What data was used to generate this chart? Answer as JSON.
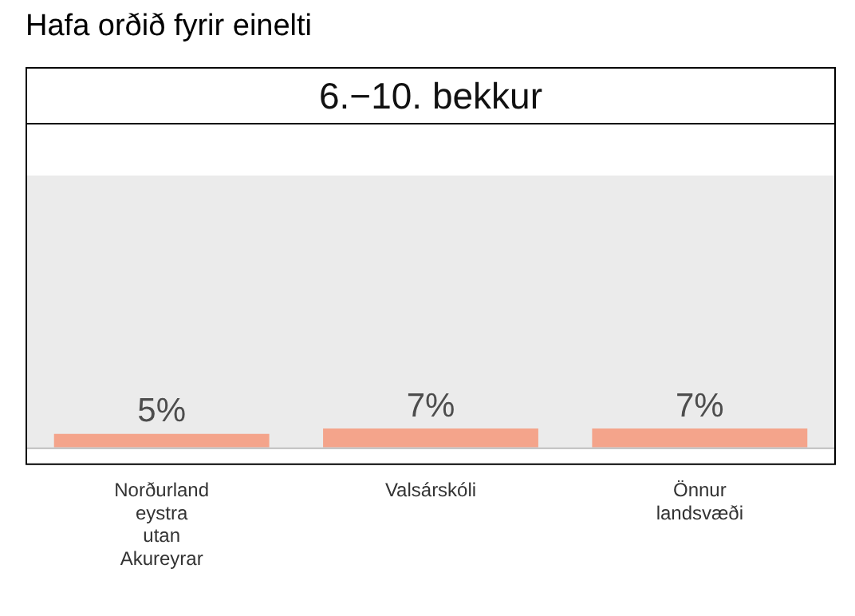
{
  "chart_data": {
    "type": "bar",
    "title": "Hafa orðið fyrir einelti",
    "subtitle": "6.−10. bekkur",
    "categories": [
      "Norðurland eystra utan Akureyrar",
      "Valsárskóli",
      "Önnur landsvæði"
    ],
    "values": [
      5,
      7,
      7
    ],
    "value_labels": [
      "5%",
      "7%",
      "7%"
    ],
    "color": "#f4a48b",
    "ylim": [
      0,
      100
    ],
    "tick_labels": "x",
    "grid": false,
    "legend": false
  }
}
